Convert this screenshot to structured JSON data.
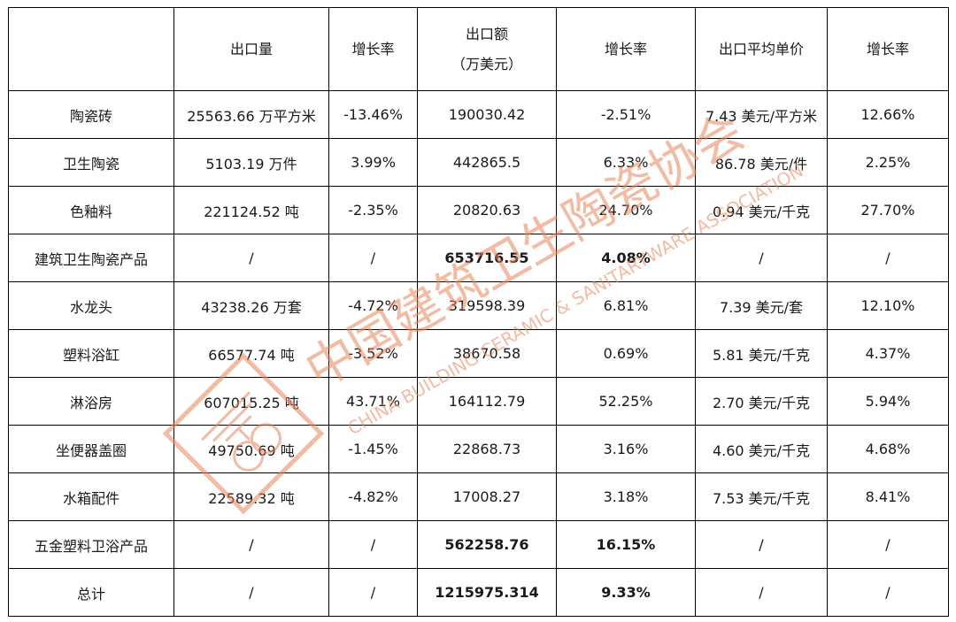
{
  "headers": [
    "",
    "出口量",
    "增长率",
    "出口额",
    "（万美元）",
    "增长率",
    "出口平均单价",
    "增长率"
  ],
  "rows": [
    {
      "name": "陶瓷砖",
      "qty": "25563.66 万平方米",
      "qty_growth": "-13.46%",
      "value": "190030.42",
      "value_growth": "-2.51%",
      "price": "7.43 美元/平方米",
      "price_growth": "12.66%",
      "bold": false
    },
    {
      "name": "卫生陶瓷",
      "qty": "5103.19 万件",
      "qty_growth": "3.99%",
      "value": "442865.5",
      "value_growth": "6.33%",
      "price": "86.78 美元/件",
      "price_growth": "2.25%",
      "bold": false
    },
    {
      "name": "色釉料",
      "qty": "221124.52 吨",
      "qty_growth": "-2.35%",
      "value": "20820.63",
      "value_growth": "24.70%",
      "price": "0.94 美元/千克",
      "price_growth": "27.70%",
      "bold": false
    },
    {
      "name": "建筑卫生陶瓷产品",
      "qty": "/",
      "qty_growth": "/",
      "value": "653716.55",
      "value_growth": "4.08%",
      "price": "/",
      "price_growth": "/",
      "bold": true
    },
    {
      "name": "水龙头",
      "qty": "43238.26 万套",
      "qty_growth": "-4.72%",
      "value": "319598.39",
      "value_growth": "6.81%",
      "price": "7.39 美元/套",
      "price_growth": "12.10%",
      "bold": false
    },
    {
      "name": "塑料浴缸",
      "qty": "66577.74 吨",
      "qty_growth": "-3.52%",
      "value": "38670.58",
      "value_growth": "0.69%",
      "price": "5.81 美元/千克",
      "price_growth": "4.37%",
      "bold": false
    },
    {
      "name": "淋浴房",
      "qty": "607015.25 吨",
      "qty_growth": "43.71%",
      "value": "164112.79",
      "value_growth": "52.25%",
      "price": "2.70 美元/千克",
      "price_growth": "5.94%",
      "bold": false
    },
    {
      "name": "坐便器盖圈",
      "qty": "49750.69 吨",
      "qty_growth": "-1.45%",
      "value": "22868.73",
      "value_growth": "3.16%",
      "price": "4.60 美元/千克",
      "price_growth": "4.68%",
      "bold": false
    },
    {
      "name": "水箱配件",
      "qty": "22589.32 吨",
      "qty_growth": "-4.82%",
      "value": "17008.27",
      "value_growth": "3.18%",
      "price": "7.53 美元/千克",
      "price_growth": "8.41%",
      "bold": false
    },
    {
      "name": "五金塑料卫浴产品",
      "qty": "/",
      "qty_growth": "/",
      "value": "562258.76",
      "value_growth": "16.15%",
      "price": "/",
      "price_growth": "/",
      "bold": true
    },
    {
      "name": "总计",
      "qty": "/",
      "qty_growth": "/",
      "value": "1215975.314",
      "value_growth": "9.33%",
      "price": "/",
      "price_growth": "/",
      "bold": true
    }
  ],
  "watermark": {
    "text_cn": "中国建筑卫生陶瓷协会",
    "text_en": "CHINA BUILDING CERAMIC & SANITARYWARE ASSOCIATION",
    "color": "#e8845a"
  }
}
